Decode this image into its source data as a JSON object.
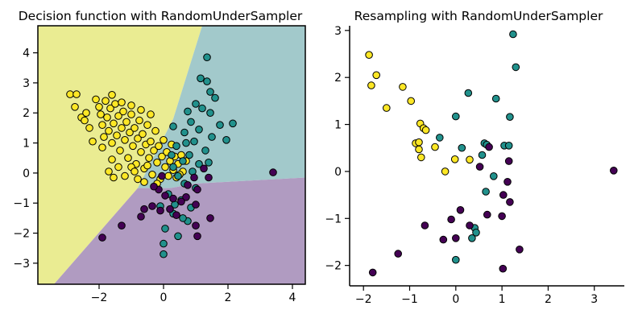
{
  "colors": {
    "yellow": "#fde725",
    "teal": "#21918c",
    "purple": "#440154",
    "region_yellow": "#eaec92",
    "region_teal": "#a2c9cb",
    "region_purple": "#b09bc1"
  },
  "chart_data": [
    {
      "type": "scatter",
      "title": "Decision function with RandomUnderSampler",
      "xlabel": "",
      "ylabel": "",
      "xlim": [
        -3.9,
        4.4
      ],
      "ylim": [
        -3.7,
        4.9
      ],
      "xticks": [
        -2,
        0,
        2,
        4
      ],
      "yticks": [
        -3,
        -2,
        -1,
        0,
        1,
        2,
        3,
        4
      ],
      "xtick_labels": [
        "−2",
        "0",
        "2",
        "4"
      ],
      "ytick_labels": [
        "−3",
        "−2",
        "−1",
        "0",
        "1",
        "2",
        "3",
        "4"
      ],
      "grid": false,
      "decision_regions": [
        {
          "class": "yellow",
          "polygon": [
            [
              -3.9,
              4.9
            ],
            [
              1.2,
              4.9
            ],
            [
              0.3,
              1.8
            ],
            [
              -0.8,
              -0.5
            ],
            [
              -3.4,
              -3.7
            ],
            [
              -3.9,
              -3.7
            ]
          ]
        },
        {
          "class": "teal",
          "polygon": [
            [
              1.2,
              4.9
            ],
            [
              4.4,
              4.9
            ],
            [
              4.4,
              -0.15
            ],
            [
              1.0,
              -0.35
            ],
            [
              0.2,
              -0.5
            ],
            [
              -0.8,
              -0.5
            ],
            [
              0.3,
              1.8
            ]
          ]
        },
        {
          "class": "purple",
          "polygon": [
            [
              -0.8,
              -0.5
            ],
            [
              0.2,
              -0.5
            ],
            [
              1.0,
              -0.35
            ],
            [
              4.4,
              -0.15
            ],
            [
              4.4,
              -3.7
            ],
            [
              -3.4,
              -3.7
            ]
          ]
        }
      ],
      "series": [
        {
          "class": "yellow",
          "points": [
            [
              -2.9,
              2.62
            ],
            [
              -2.7,
              2.62
            ],
            [
              -2.75,
              2.2
            ],
            [
              -2.55,
              1.85
            ],
            [
              -2.4,
              2.0
            ],
            [
              -2.3,
              1.5
            ],
            [
              -2.1,
              2.45
            ],
            [
              -2.0,
              2.2
            ],
            [
              -1.95,
              1.95
            ],
            [
              -1.9,
              1.6
            ],
            [
              -1.85,
              1.2
            ],
            [
              -1.8,
              2.4
            ],
            [
              -1.75,
              1.85
            ],
            [
              -1.7,
              1.4
            ],
            [
              -1.65,
              2.15
            ],
            [
              -1.6,
              1.0
            ],
            [
              -1.55,
              1.65
            ],
            [
              -1.5,
              2.3
            ],
            [
              -1.45,
              1.25
            ],
            [
              -1.4,
              1.9
            ],
            [
              -1.35,
              0.75
            ],
            [
              -1.3,
              1.5
            ],
            [
              -1.25,
              2.05
            ],
            [
              -1.2,
              1.1
            ],
            [
              -1.15,
              1.7
            ],
            [
              -1.1,
              0.5
            ],
            [
              -1.05,
              1.35
            ],
            [
              -1.0,
              1.95
            ],
            [
              -0.95,
              0.9
            ],
            [
              -0.9,
              1.5
            ],
            [
              -0.85,
              0.3
            ],
            [
              -0.8,
              1.15
            ],
            [
              -0.75,
              1.75
            ],
            [
              -0.7,
              0.7
            ],
            [
              -0.65,
              1.3
            ],
            [
              -0.6,
              0.15
            ],
            [
              -0.55,
              0.95
            ],
            [
              -0.5,
              1.6
            ],
            [
              -0.45,
              0.5
            ],
            [
              -0.4,
              1.05
            ],
            [
              -0.35,
              -0.05
            ],
            [
              -0.3,
              0.75
            ],
            [
              -0.25,
              1.4
            ],
            [
              -0.2,
              0.35
            ],
            [
              -0.15,
              0.9
            ],
            [
              -0.1,
              -0.2
            ],
            [
              -0.05,
              0.55
            ],
            [
              0.0,
              1.1
            ],
            [
              0.05,
              0.2
            ],
            [
              0.1,
              0.7
            ],
            [
              0.15,
              -0.1
            ],
            [
              0.2,
              0.4
            ],
            [
              0.25,
              0.95
            ],
            [
              0.3,
              0.1
            ],
            [
              0.35,
              0.55
            ],
            [
              0.4,
              -0.15
            ],
            [
              0.45,
              0.3
            ],
            [
              0.55,
              0.6
            ],
            [
              0.6,
              0.05
            ],
            [
              0.7,
              0.4
            ],
            [
              -2.45,
              1.75
            ],
            [
              -2.2,
              1.05
            ],
            [
              -1.9,
              0.85
            ],
            [
              -1.6,
              0.45
            ],
            [
              -1.4,
              0.2
            ],
            [
              -1.7,
              0.05
            ],
            [
              -1.2,
              -0.1
            ],
            [
              -1.0,
              0.2
            ],
            [
              -0.8,
              -0.2
            ],
            [
              -0.6,
              -0.3
            ],
            [
              -1.6,
              2.6
            ],
            [
              -1.3,
              2.35
            ],
            [
              -1.0,
              2.25
            ],
            [
              -0.7,
              2.1
            ],
            [
              -0.4,
              1.95
            ],
            [
              -1.55,
              -0.15
            ],
            [
              -0.9,
              0.05
            ],
            [
              -0.5,
              0.25
            ],
            [
              -0.2,
              -0.35
            ],
            [
              0.5,
              -0.05
            ]
          ]
        },
        {
          "class": "teal",
          "points": [
            [
              1.35,
              3.85
            ],
            [
              1.15,
              3.15
            ],
            [
              1.35,
              3.05
            ],
            [
              1.45,
              2.7
            ],
            [
              1.6,
              2.5
            ],
            [
              1.0,
              2.3
            ],
            [
              1.2,
              2.15
            ],
            [
              0.75,
              2.05
            ],
            [
              1.45,
              2.0
            ],
            [
              0.85,
              1.7
            ],
            [
              1.75,
              1.6
            ],
            [
              0.3,
              1.55
            ],
            [
              1.1,
              1.45
            ],
            [
              0.65,
              1.35
            ],
            [
              1.5,
              1.2
            ],
            [
              0.95,
              1.05
            ],
            [
              0.4,
              0.9
            ],
            [
              1.3,
              0.75
            ],
            [
              0.8,
              0.6
            ],
            [
              0.6,
              0.4
            ],
            [
              1.1,
              0.3
            ],
            [
              0.3,
              0.2
            ],
            [
              0.9,
              0.05
            ],
            [
              0.45,
              -0.1
            ],
            [
              0.65,
              -0.35
            ],
            [
              1.0,
              -0.5
            ],
            [
              0.15,
              -0.7
            ],
            [
              0.55,
              -0.9
            ],
            [
              0.85,
              -1.15
            ],
            [
              0.3,
              -1.35
            ],
            [
              0.75,
              -1.6
            ],
            [
              0.05,
              -1.85
            ],
            [
              0.45,
              -2.1
            ],
            [
              0.0,
              -2.35
            ],
            [
              0.0,
              -2.7
            ],
            [
              0.35,
              -1.05
            ],
            [
              0.6,
              -1.5
            ],
            [
              -0.1,
              -1.1
            ],
            [
              0.25,
              0.6
            ],
            [
              0.7,
              1.0
            ],
            [
              2.15,
              1.65
            ],
            [
              1.95,
              1.1
            ],
            [
              1.4,
              0.35
            ]
          ]
        },
        {
          "class": "purple",
          "points": [
            [
              3.4,
              0.02
            ],
            [
              1.4,
              -0.15
            ],
            [
              1.05,
              -0.55
            ],
            [
              0.7,
              -0.8
            ],
            [
              0.3,
              -0.85
            ],
            [
              0.05,
              -0.75
            ],
            [
              -0.15,
              -0.55
            ],
            [
              -0.3,
              -0.45
            ],
            [
              -0.7,
              -1.45
            ],
            [
              -0.35,
              -1.1
            ],
            [
              -0.1,
              -1.25
            ],
            [
              0.2,
              -1.2
            ],
            [
              0.55,
              -0.95
            ],
            [
              1.0,
              -1.05
            ],
            [
              1.45,
              -1.5
            ],
            [
              1.0,
              -1.75
            ],
            [
              1.05,
              -2.1
            ],
            [
              -1.9,
              -2.15
            ],
            [
              -1.3,
              -1.75
            ],
            [
              -0.6,
              -1.2
            ],
            [
              0.75,
              -0.4
            ],
            [
              0.95,
              -0.15
            ],
            [
              1.25,
              0.15
            ],
            [
              -0.05,
              -0.1
            ],
            [
              0.4,
              -1.4
            ]
          ]
        }
      ]
    },
    {
      "type": "scatter",
      "title": "Resampling with RandomUnderSampler",
      "xlabel": "",
      "ylabel": "",
      "xlim": [
        -2.3,
        3.65
      ],
      "ylim": [
        -2.4,
        3.1
      ],
      "xticks": [
        -2,
        -1,
        0,
        1,
        2,
        3
      ],
      "yticks": [
        -2,
        -1,
        0,
        1,
        2,
        3
      ],
      "xtick_labels": [
        "−2",
        "−1",
        "0",
        "1",
        "2",
        "3"
      ],
      "ytick_labels": [
        "−2",
        "−1",
        "0",
        "1",
        "2",
        "3"
      ],
      "grid": false,
      "series": [
        {
          "class": "yellow",
          "points": [
            [
              -1.88,
              2.48
            ],
            [
              -1.83,
              1.83
            ],
            [
              -1.72,
              2.05
            ],
            [
              -1.5,
              1.35
            ],
            [
              -1.15,
              1.8
            ],
            [
              -0.97,
              1.5
            ],
            [
              -0.77,
              1.02
            ],
            [
              -0.7,
              0.92
            ],
            [
              -0.65,
              0.88
            ],
            [
              -0.87,
              0.6
            ],
            [
              -0.8,
              0.62
            ],
            [
              -0.8,
              0.47
            ],
            [
              -0.75,
              0.3
            ],
            [
              -0.45,
              0.52
            ],
            [
              -0.23,
              0.0
            ],
            [
              -0.02,
              0.26
            ],
            [
              0.3,
              0.25
            ]
          ]
        },
        {
          "class": "teal",
          "points": [
            [
              1.24,
              2.92
            ],
            [
              1.3,
              2.22
            ],
            [
              0.27,
              1.67
            ],
            [
              0.87,
              1.55
            ],
            [
              0.0,
              1.17
            ],
            [
              1.17,
              1.16
            ],
            [
              0.13,
              0.5
            ],
            [
              -0.35,
              0.72
            ],
            [
              0.62,
              0.6
            ],
            [
              0.67,
              0.57
            ],
            [
              1.05,
              0.55
            ],
            [
              1.15,
              0.55
            ],
            [
              0.57,
              0.35
            ],
            [
              0.82,
              -0.1
            ],
            [
              0.65,
              -0.43
            ],
            [
              0.41,
              -1.2
            ],
            [
              0.44,
              -1.3
            ],
            [
              0.35,
              -1.42
            ],
            [
              0.0,
              -1.88
            ]
          ]
        },
        {
          "class": "purple",
          "points": [
            [
              3.42,
              0.02
            ],
            [
              1.12,
              -0.22
            ],
            [
              1.03,
              -0.5
            ],
            [
              1.17,
              -0.65
            ],
            [
              0.52,
              0.1
            ],
            [
              0.72,
              0.52
            ],
            [
              1.0,
              -0.95
            ],
            [
              0.68,
              -0.92
            ],
            [
              0.1,
              -0.82
            ],
            [
              -0.1,
              -1.02
            ],
            [
              -0.67,
              -1.15
            ],
            [
              0.3,
              -1.15
            ],
            [
              0.0,
              -1.42
            ],
            [
              -0.27,
              -1.45
            ],
            [
              1.38,
              -1.66
            ],
            [
              -1.25,
              -1.75
            ],
            [
              -1.8,
              -2.15
            ],
            [
              1.02,
              -2.07
            ],
            [
              1.15,
              0.22
            ]
          ]
        }
      ]
    }
  ]
}
